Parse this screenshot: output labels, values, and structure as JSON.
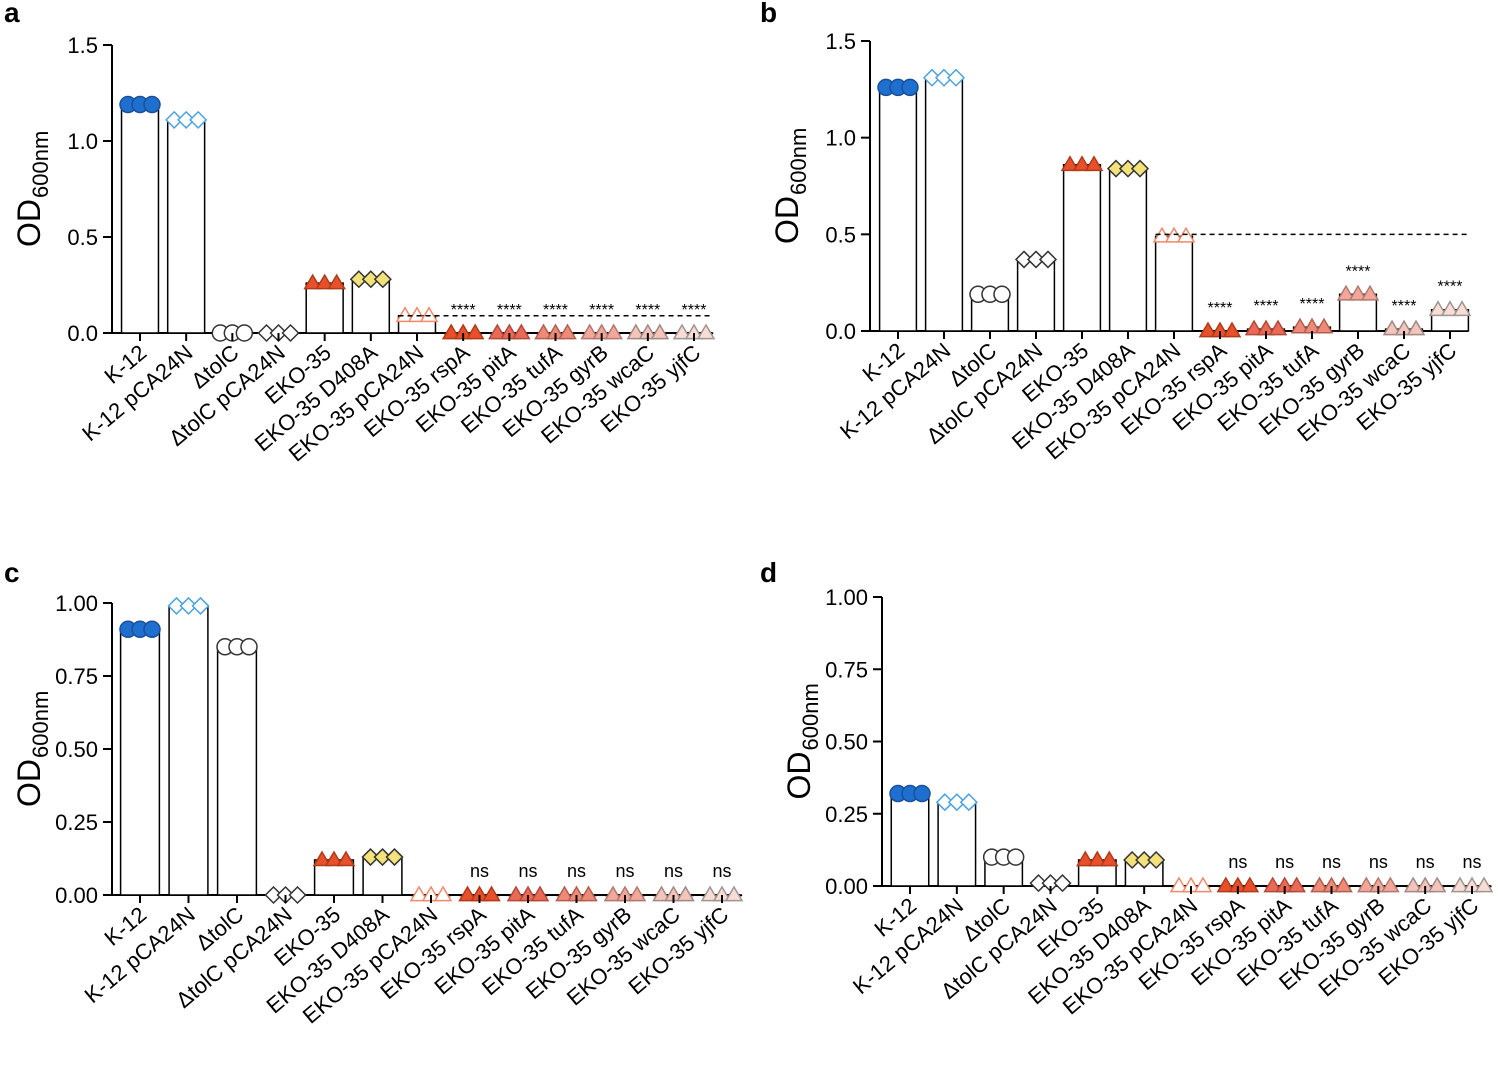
{
  "chart_data": [
    {
      "type": "bar",
      "panel": "a",
      "y_label": "OD",
      "y_label_sub": "600nm",
      "categories": [
        "K-12",
        "K-12 pCA24N",
        "ΔtolC",
        "ΔtolC pCA24N",
        "EKO-35",
        "EKO-35 D408A",
        "EKO-35 pCA24N",
        "EKO-35 rspA",
        "EKO-35 pitA",
        "EKO-35 tufA",
        "EKO-35 gyrB",
        "EKO-35 wcaC",
        "EKO-35 yjfC"
      ],
      "values": [
        1.19,
        1.11,
        0.0,
        0.0,
        0.26,
        0.28,
        0.09,
        0.0,
        0.0,
        0.0,
        0.0,
        0.0,
        0.0
      ],
      "annotations": [
        null,
        null,
        null,
        null,
        null,
        null,
        null,
        "****",
        "****",
        "****",
        "****",
        "****",
        "****"
      ],
      "shapes": [
        "circle",
        "diamond",
        "circle",
        "diamond",
        "triangle",
        "diamond",
        "triangle",
        "triangle",
        "triangle",
        "triangle",
        "triangle",
        "triangle",
        "triangle"
      ],
      "fills": [
        "#1f6fcf",
        "#ffffff",
        "#ffffff",
        "#ffffff",
        "#e8502a",
        "#f3e27a",
        "#ffffff",
        "#e8502a",
        "#ec6a55",
        "#f08a78",
        "#f2a79a",
        "#f4c4bb",
        "#f8dcd6"
      ],
      "strokes": [
        "#1a4f9a",
        "#4ba3e0",
        "#333333",
        "#333333",
        "#b03a1a",
        "#333333",
        "#f08a6a",
        "#b03a1a",
        "#b04a3a",
        "#b06050",
        "#b07a70",
        "#a08a85",
        "#a09590"
      ],
      "reference_line": 0.09,
      "ylim": [
        0,
        1.5
      ],
      "yticks": [
        {
          "value": 0,
          "label": "0.0"
        },
        0.5,
        {
          "value": 1,
          "label": "1.0"
        },
        1.5
      ]
    },
    {
      "type": "bar",
      "panel": "b",
      "y_label": "OD",
      "y_label_sub": "600nm",
      "categories": [
        "K-12",
        "K-12 pCA24N",
        "ΔtolC",
        "ΔtolC pCA24N",
        "EKO-35",
        "EKO-35 D408A",
        "EKO-35 pCA24N",
        "EKO-35 rspA",
        "EKO-35 pitA",
        "EKO-35 tufA",
        "EKO-35 gyrB",
        "EKO-35 wcaC",
        "EKO-35 yjfC"
      ],
      "values": [
        1.26,
        1.31,
        0.19,
        0.37,
        0.86,
        0.84,
        0.49,
        0.0,
        0.01,
        0.02,
        0.19,
        0.01,
        0.11
      ],
      "annotations": [
        null,
        null,
        null,
        null,
        null,
        null,
        null,
        "****",
        "****",
        "****",
        "****",
        "****",
        "****"
      ],
      "shapes": [
        "circle",
        "diamond",
        "circle",
        "diamond",
        "triangle",
        "diamond",
        "triangle",
        "triangle",
        "triangle",
        "triangle",
        "triangle",
        "triangle",
        "triangle"
      ],
      "fills": [
        "#1f6fcf",
        "#ffffff",
        "#ffffff",
        "#ffffff",
        "#e8502a",
        "#f3e27a",
        "#ffffff",
        "#e8502a",
        "#ec6a55",
        "#f08a78",
        "#f2a79a",
        "#f4c4bb",
        "#f8dcd6"
      ],
      "strokes": [
        "#1a4f9a",
        "#4ba3e0",
        "#333333",
        "#333333",
        "#b03a1a",
        "#333333",
        "#f08a6a",
        "#b03a1a",
        "#b04a3a",
        "#b06050",
        "#b07a70",
        "#a08a85",
        "#a09590"
      ],
      "reference_line": 0.5,
      "ylim": [
        0,
        1.5
      ],
      "yticks": [
        {
          "value": 0,
          "label": "0.0"
        },
        0.5,
        {
          "value": 1,
          "label": "1.0"
        },
        1.5
      ]
    },
    {
      "type": "bar",
      "panel": "c",
      "y_label": "OD",
      "y_label_sub": "600nm",
      "categories": [
        "K-12",
        "K-12 pCA24N",
        "ΔtolC",
        "ΔtolC pCA24N",
        "EKO-35",
        "EKO-35 D408A",
        "EKO-35 pCA24N",
        "EKO-35 rspA",
        "EKO-35 pitA",
        "EKO-35 tufA",
        "EKO-35 gyrB",
        "EKO-35 wcaC",
        "EKO-35 yjfC"
      ],
      "values": [
        0.91,
        0.99,
        0.85,
        0.0,
        0.12,
        0.13,
        0.0,
        0.0,
        0.0,
        0.0,
        0.0,
        0.0,
        0.0
      ],
      "annotations": [
        null,
        null,
        null,
        null,
        null,
        null,
        null,
        "ns",
        "ns",
        "ns",
        "ns",
        "ns",
        "ns"
      ],
      "shapes": [
        "circle",
        "diamond",
        "circle",
        "diamond",
        "triangle",
        "diamond",
        "triangle",
        "triangle",
        "triangle",
        "triangle",
        "triangle",
        "triangle",
        "triangle"
      ],
      "fills": [
        "#1f6fcf",
        "#ffffff",
        "#ffffff",
        "#ffffff",
        "#e8502a",
        "#f3e27a",
        "#ffffff",
        "#e8502a",
        "#ec6a55",
        "#f08a78",
        "#f2a79a",
        "#f4c4bb",
        "#f8dcd6"
      ],
      "strokes": [
        "#1a4f9a",
        "#4ba3e0",
        "#333333",
        "#333333",
        "#b03a1a",
        "#333333",
        "#f08a6a",
        "#b03a1a",
        "#b04a3a",
        "#b06050",
        "#b07a70",
        "#a08a85",
        "#a09590"
      ],
      "ylim": [
        0,
        1
      ],
      "yticks": [
        {
          "value": 0,
          "label": "0.00"
        },
        0.25,
        {
          "value": 0.5,
          "label": "0.50"
        },
        0.75,
        {
          "value": 1,
          "label": "1.00"
        }
      ]
    },
    {
      "type": "bar",
      "panel": "d",
      "y_label": "OD",
      "y_label_sub": "600nm",
      "categories": [
        "K-12",
        "K-12 pCA24N",
        "ΔtolC",
        "ΔtolC pCA24N",
        "EKO-35",
        "EKO-35 D408A",
        "EKO-35 pCA24N",
        "EKO-35 rspA",
        "EKO-35 pitA",
        "EKO-35 tufA",
        "EKO-35 gyrB",
        "EKO-35 wcaC",
        "EKO-35 yjfC"
      ],
      "values": [
        0.32,
        0.29,
        0.1,
        0.01,
        0.09,
        0.09,
        0.0,
        0.0,
        0.0,
        0.0,
        0.0,
        0.0,
        0.0
      ],
      "annotations": [
        null,
        null,
        null,
        null,
        null,
        null,
        null,
        "ns",
        "ns",
        "ns",
        "ns",
        "ns",
        "ns"
      ],
      "shapes": [
        "circle",
        "diamond",
        "circle",
        "diamond",
        "triangle",
        "diamond",
        "triangle",
        "triangle",
        "triangle",
        "triangle",
        "triangle",
        "triangle",
        "triangle"
      ],
      "fills": [
        "#1f6fcf",
        "#ffffff",
        "#ffffff",
        "#ffffff",
        "#e8502a",
        "#f3e27a",
        "#ffffff",
        "#e8502a",
        "#ec6a55",
        "#f08a78",
        "#f2a79a",
        "#f4c4bb",
        "#f8dcd6"
      ],
      "strokes": [
        "#1a4f9a",
        "#4ba3e0",
        "#333333",
        "#333333",
        "#b03a1a",
        "#333333",
        "#f08a6a",
        "#b03a1a",
        "#b04a3a",
        "#b06050",
        "#b07a70",
        "#a08a85",
        "#a09590"
      ],
      "ylim": [
        0,
        1
      ],
      "yticks": [
        {
          "value": 0,
          "label": "0.00"
        },
        0.25,
        {
          "value": 0.5,
          "label": "0.50"
        },
        0.75,
        {
          "value": 1,
          "label": "1.00"
        }
      ]
    }
  ]
}
